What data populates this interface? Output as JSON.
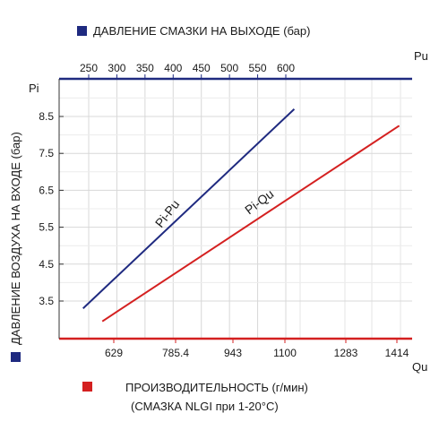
{
  "chart_data": {
    "type": "line",
    "top_axis": {
      "legend_label": "ДАВЛЕНИЕ СМАЗКИ НА ВЫХОДЕ (бар)",
      "legend_color": "#1f2a80",
      "symbol": "Pu",
      "ticks": [
        250,
        300,
        350,
        400,
        450,
        500,
        550,
        600
      ]
    },
    "left_axis": {
      "label": "ДАВЛЕНИЕ ВОЗДУХА НА ВХОДЕ (бар)",
      "legend_color": "#1f2a80",
      "symbol": "Pi",
      "ticks": [
        "3.5",
        "4.5",
        "5.5",
        "6.5",
        "7.5",
        "8.5"
      ],
      "range": [
        2.7,
        9.5
      ]
    },
    "bottom_axis": {
      "legend_label_line1": "ПРОИЗВОДИТЕЛЬНОСТЬ (г/мин)",
      "legend_label_line2": "(СМАЗКА NLGI при 1-20°C)",
      "legend_color": "#d42020",
      "symbol": "Qu",
      "ticks": [
        "629",
        "785.4",
        "943",
        "1100",
        "1283",
        "1414"
      ]
    },
    "series": [
      {
        "name": "Pi-Pu",
        "color": "#1f2a80",
        "points": [
          {
            "pu": 240,
            "pi": 3.3
          },
          {
            "pu": 615,
            "pi": 8.7
          }
        ]
      },
      {
        "name": "Pi-Qu",
        "color": "#d42020",
        "points": [
          {
            "qu": 600,
            "pi": 2.95
          },
          {
            "qu": 1420,
            "pi": 8.25
          }
        ]
      }
    ],
    "grid": true
  }
}
